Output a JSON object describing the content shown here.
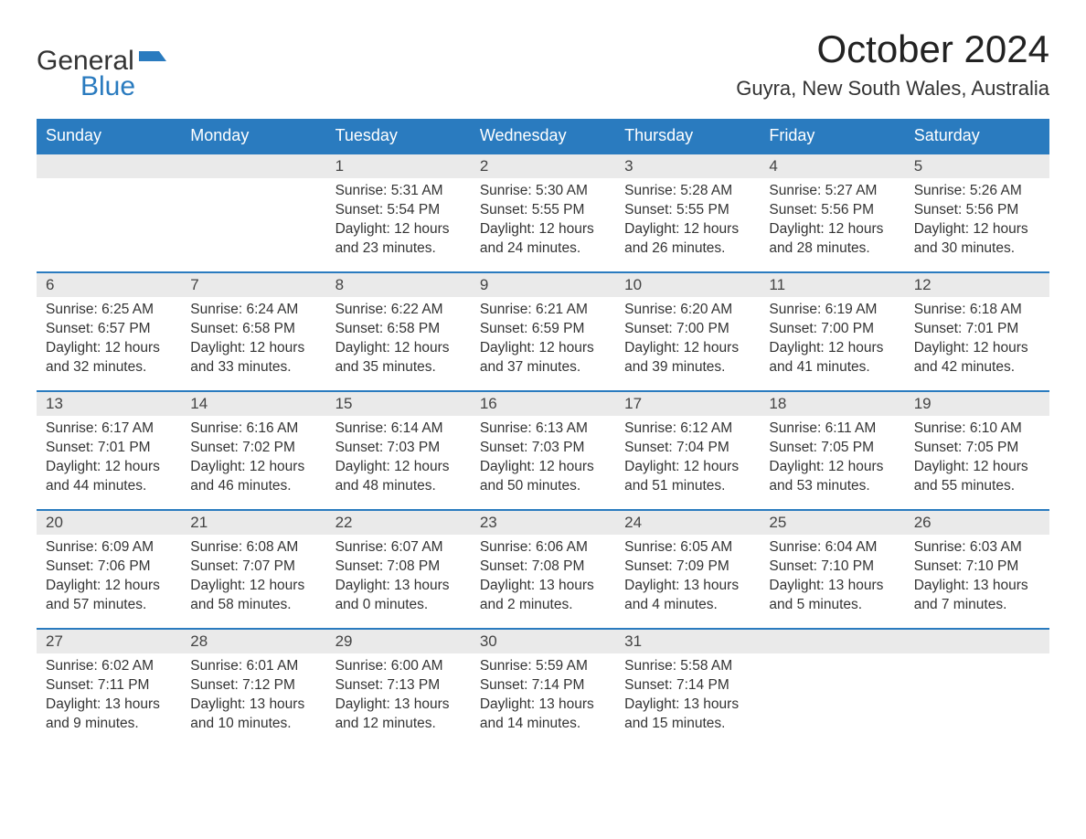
{
  "logo": {
    "text1": "General",
    "text2": "Blue",
    "color1": "#333333",
    "color2": "#2a7bbf"
  },
  "title": "October 2024",
  "location": "Guyra, New South Wales, Australia",
  "header_bg": "#2a7bbf",
  "header_fg": "#ffffff",
  "daynum_bg": "#eaeaea",
  "row_border": "#2a7bbf",
  "weekdays": [
    "Sunday",
    "Monday",
    "Tuesday",
    "Wednesday",
    "Thursday",
    "Friday",
    "Saturday"
  ],
  "weeks": [
    [
      null,
      null,
      {
        "d": "1",
        "sr": "5:31 AM",
        "ss": "5:54 PM",
        "dl": "12 hours and 23 minutes."
      },
      {
        "d": "2",
        "sr": "5:30 AM",
        "ss": "5:55 PM",
        "dl": "12 hours and 24 minutes."
      },
      {
        "d": "3",
        "sr": "5:28 AM",
        "ss": "5:55 PM",
        "dl": "12 hours and 26 minutes."
      },
      {
        "d": "4",
        "sr": "5:27 AM",
        "ss": "5:56 PM",
        "dl": "12 hours and 28 minutes."
      },
      {
        "d": "5",
        "sr": "5:26 AM",
        "ss": "5:56 PM",
        "dl": "12 hours and 30 minutes."
      }
    ],
    [
      {
        "d": "6",
        "sr": "6:25 AM",
        "ss": "6:57 PM",
        "dl": "12 hours and 32 minutes."
      },
      {
        "d": "7",
        "sr": "6:24 AM",
        "ss": "6:58 PM",
        "dl": "12 hours and 33 minutes."
      },
      {
        "d": "8",
        "sr": "6:22 AM",
        "ss": "6:58 PM",
        "dl": "12 hours and 35 minutes."
      },
      {
        "d": "9",
        "sr": "6:21 AM",
        "ss": "6:59 PM",
        "dl": "12 hours and 37 minutes."
      },
      {
        "d": "10",
        "sr": "6:20 AM",
        "ss": "7:00 PM",
        "dl": "12 hours and 39 minutes."
      },
      {
        "d": "11",
        "sr": "6:19 AM",
        "ss": "7:00 PM",
        "dl": "12 hours and 41 minutes."
      },
      {
        "d": "12",
        "sr": "6:18 AM",
        "ss": "7:01 PM",
        "dl": "12 hours and 42 minutes."
      }
    ],
    [
      {
        "d": "13",
        "sr": "6:17 AM",
        "ss": "7:01 PM",
        "dl": "12 hours and 44 minutes."
      },
      {
        "d": "14",
        "sr": "6:16 AM",
        "ss": "7:02 PM",
        "dl": "12 hours and 46 minutes."
      },
      {
        "d": "15",
        "sr": "6:14 AM",
        "ss": "7:03 PM",
        "dl": "12 hours and 48 minutes."
      },
      {
        "d": "16",
        "sr": "6:13 AM",
        "ss": "7:03 PM",
        "dl": "12 hours and 50 minutes."
      },
      {
        "d": "17",
        "sr": "6:12 AM",
        "ss": "7:04 PM",
        "dl": "12 hours and 51 minutes."
      },
      {
        "d": "18",
        "sr": "6:11 AM",
        "ss": "7:05 PM",
        "dl": "12 hours and 53 minutes."
      },
      {
        "d": "19",
        "sr": "6:10 AM",
        "ss": "7:05 PM",
        "dl": "12 hours and 55 minutes."
      }
    ],
    [
      {
        "d": "20",
        "sr": "6:09 AM",
        "ss": "7:06 PM",
        "dl": "12 hours and 57 minutes."
      },
      {
        "d": "21",
        "sr": "6:08 AM",
        "ss": "7:07 PM",
        "dl": "12 hours and 58 minutes."
      },
      {
        "d": "22",
        "sr": "6:07 AM",
        "ss": "7:08 PM",
        "dl": "13 hours and 0 minutes."
      },
      {
        "d": "23",
        "sr": "6:06 AM",
        "ss": "7:08 PM",
        "dl": "13 hours and 2 minutes."
      },
      {
        "d": "24",
        "sr": "6:05 AM",
        "ss": "7:09 PM",
        "dl": "13 hours and 4 minutes."
      },
      {
        "d": "25",
        "sr": "6:04 AM",
        "ss": "7:10 PM",
        "dl": "13 hours and 5 minutes."
      },
      {
        "d": "26",
        "sr": "6:03 AM",
        "ss": "7:10 PM",
        "dl": "13 hours and 7 minutes."
      }
    ],
    [
      {
        "d": "27",
        "sr": "6:02 AM",
        "ss": "7:11 PM",
        "dl": "13 hours and 9 minutes."
      },
      {
        "d": "28",
        "sr": "6:01 AM",
        "ss": "7:12 PM",
        "dl": "13 hours and 10 minutes."
      },
      {
        "d": "29",
        "sr": "6:00 AM",
        "ss": "7:13 PM",
        "dl": "13 hours and 12 minutes."
      },
      {
        "d": "30",
        "sr": "5:59 AM",
        "ss": "7:14 PM",
        "dl": "13 hours and 14 minutes."
      },
      {
        "d": "31",
        "sr": "5:58 AM",
        "ss": "7:14 PM",
        "dl": "13 hours and 15 minutes."
      },
      null,
      null
    ]
  ],
  "labels": {
    "sunrise": "Sunrise:",
    "sunset": "Sunset:",
    "daylight": "Daylight:"
  }
}
